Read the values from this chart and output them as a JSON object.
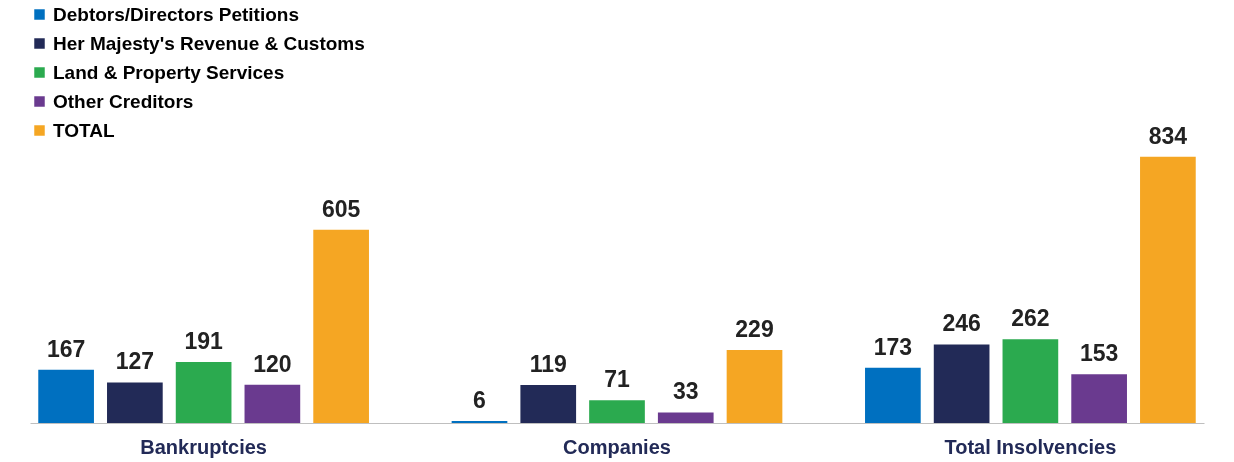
{
  "chart_data": {
    "type": "bar",
    "categories": [
      "Bankruptcies",
      "Companies",
      "Total Insolvencies"
    ],
    "series": [
      {
        "name": "Debtors/Directors Petitions",
        "color": "#0070c0",
        "values": [
          167,
          6,
          173
        ]
      },
      {
        "name": "Her Majesty's Revenue & Customs",
        "color": "#222a57",
        "values": [
          127,
          119,
          246
        ]
      },
      {
        "name": "Land & Property Services",
        "color": "#2baa4f",
        "values": [
          191,
          71,
          262
        ]
      },
      {
        "name": "Other Creditors",
        "color": "#6a3a8f",
        "values": [
          120,
          33,
          153
        ]
      },
      {
        "name": "TOTAL",
        "color": "#f5a623",
        "values": [
          605,
          229,
          834
        ]
      }
    ],
    "data_labels": true,
    "legend": "top left",
    "grid": false
  }
}
